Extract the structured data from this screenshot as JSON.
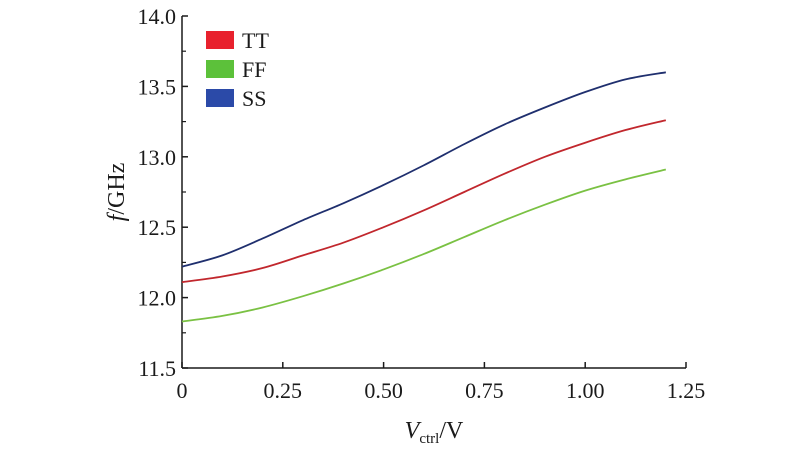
{
  "chart_data": {
    "type": "line",
    "x_range": [
      0,
      1.25
    ],
    "y_range": [
      11.5,
      14.0
    ],
    "x_ticks": [
      "0",
      "0.25",
      "0.50",
      "0.75",
      "1.00",
      "1.25"
    ],
    "y_ticks": [
      "11.5",
      "12.0",
      "12.5",
      "13.0",
      "13.5",
      "14.0"
    ],
    "xlabel": {
      "symbol": "V",
      "subscript": "ctrl",
      "unit": "/V"
    },
    "ylabel": {
      "symbol": "f",
      "unit": "/GHz"
    },
    "grid": false,
    "legend_position": "top-left",
    "x": [
      0,
      0.1,
      0.2,
      0.3,
      0.4,
      0.5,
      0.6,
      0.7,
      0.8,
      0.9,
      1.0,
      1.1,
      1.2
    ],
    "series": [
      {
        "name": "TT",
        "color": "#c1272d",
        "values": [
          12.11,
          12.15,
          12.21,
          12.3,
          12.39,
          12.5,
          12.62,
          12.75,
          12.88,
          13.0,
          13.1,
          13.19,
          13.26
        ]
      },
      {
        "name": "FF",
        "color": "#7ac143",
        "values": [
          11.83,
          11.87,
          11.93,
          12.01,
          12.1,
          12.2,
          12.31,
          12.43,
          12.55,
          12.66,
          12.76,
          12.84,
          12.91
        ]
      },
      {
        "name": "SS",
        "color": "#1f2f6e",
        "values": [
          12.22,
          12.3,
          12.42,
          12.55,
          12.67,
          12.8,
          12.94,
          13.09,
          13.23,
          13.35,
          13.46,
          13.55,
          13.6
        ]
      }
    ],
    "legend_swatch_colors": [
      "#e8212e",
      "#5cc13a",
      "#2b4aa8"
    ]
  }
}
